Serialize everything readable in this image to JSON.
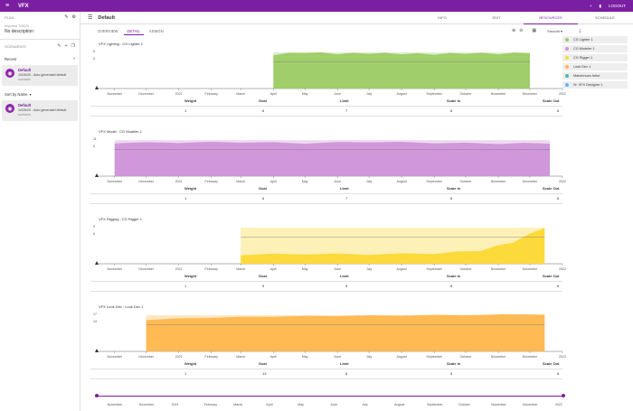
{
  "app": {
    "title": "VFX",
    "logout": "LOGOUT"
  },
  "plan": {
    "label": "PLAN",
    "meta": "Imported 7/26/20",
    "description": "No description",
    "scenarios_label": "SCENARIOS",
    "group": "Recent",
    "sort_label": "Sort by Name",
    "cards": [
      {
        "name": "Default",
        "date": "10/26/20 - Auto generated default",
        "sub": "scenario"
      },
      {
        "name": "Default",
        "date": "10/26/20 - Auto generated default",
        "sub": "scenario"
      }
    ]
  },
  "header": {
    "title": "Default",
    "tabs": [
      "INFO",
      "EDIT",
      "RESOURCES",
      "SCHEDULE"
    ],
    "active_tab": "RESOURCES"
  },
  "view_tabs": [
    "OVERVIEW",
    "DETAIL",
    "ASSIGN"
  ],
  "smooth_label": "Smooth",
  "legend": [
    {
      "label": "CG Lighter 1",
      "color": "#9ccc65"
    },
    {
      "label": "CG Modeler 1",
      "color": "#ce93d8"
    },
    {
      "label": "CG Rigger 1",
      "color": "#fdd835"
    },
    {
      "label": "Look Dev 1",
      "color": "#ffb74d"
    },
    {
      "label": "Matchmove Artist",
      "color": "#4db6ac"
    },
    {
      "label": "Sr. VFX Designer 1",
      "color": "#64b5f6"
    }
  ],
  "months": [
    "November",
    "December",
    "2021",
    "February",
    "March",
    "April",
    "May",
    "June",
    "July",
    "August",
    "September",
    "October",
    "November",
    "December",
    "2022"
  ],
  "stats_headers": [
    "Weight",
    "Goal",
    "Limit",
    "Scale In",
    "Scale Out"
  ],
  "chart_data": [
    {
      "type": "area",
      "title": "VFX Lighting : CG Lighter 1",
      "color": "#9ccc65",
      "ylim": [
        0,
        8
      ],
      "yticks": [
        "8",
        "6"
      ],
      "x": [
        "2021-04-01",
        "2021-05-01",
        "2021-06-01",
        "2021-07-01",
        "2021-08-01",
        "2021-09-01",
        "2021-10-01",
        "2021-11-01",
        "2021-12-01"
      ],
      "values": [
        7,
        7.5,
        7.2,
        7.3,
        7.2,
        7.1,
        7.3,
        7.2,
        7.4
      ],
      "stats": {
        "weight": "1",
        "goal": "6",
        "limit": "7",
        "scale_in": "8",
        "scale_out": "8"
      }
    },
    {
      "type": "area",
      "title": "VFX Model : CG Modeler 1",
      "color": "#ce93d8",
      "ylim": [
        0,
        11
      ],
      "yticks": [
        "11",
        "6"
      ],
      "x": [
        "2020-11-01",
        "2021-01-01",
        "2021-03-01",
        "2021-05-01",
        "2021-07-01",
        "2021-09-01",
        "2021-11-01",
        "2021-12-20"
      ],
      "values": [
        9.5,
        9.6,
        9.7,
        9.4,
        9.8,
        9.5,
        9.3,
        9.4
      ],
      "stats": {
        "weight": "1",
        "goal": "6",
        "limit": "7",
        "scale_in": "8",
        "scale_out": "8"
      }
    },
    {
      "type": "area",
      "title": "VFX Rigging : CG Rigger 1",
      "color": "#fdd835",
      "ylim": [
        0,
        9
      ],
      "yticks": [
        "9",
        "6"
      ],
      "x": [
        "2021-03-01",
        "2021-05-01",
        "2021-07-01",
        "2021-09-01",
        "2021-10-15",
        "2021-11-15",
        "2021-12-15"
      ],
      "values": [
        2,
        2.2,
        2.1,
        2.3,
        3,
        5,
        8.5
      ],
      "stats": {
        "weight": "1",
        "goal": "5",
        "limit": "5",
        "scale_in": "8",
        "scale_out": "8"
      }
    },
    {
      "type": "area",
      "title": "VFX Look Dev : Look Dev 1",
      "color": "#ffb74d",
      "ylim": [
        0,
        17
      ],
      "yticks": [
        "17",
        "13"
      ],
      "x": [
        "2020-12-01",
        "2021-02-01",
        "2021-04-01",
        "2021-06-01",
        "2021-08-01",
        "2021-10-01",
        "2021-12-15"
      ],
      "values": [
        14,
        15,
        15.5,
        15.8,
        16,
        16.2,
        16.5
      ],
      "stats": {
        "weight": "1",
        "goal": "13",
        "limit": "8",
        "scale_in": "8",
        "scale_out": "8"
      }
    }
  ]
}
